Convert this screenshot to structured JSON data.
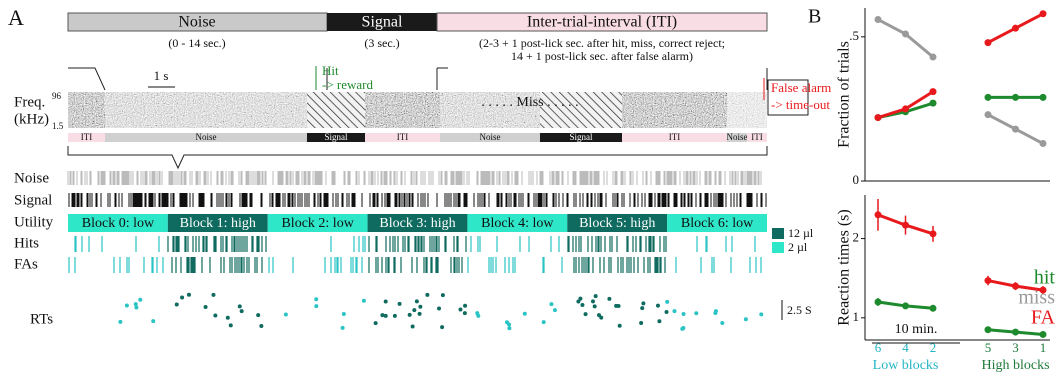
{
  "panel_a": {
    "label": "A",
    "header": [
      {
        "title": "Noise",
        "note": "(0 - 14 sec.)"
      },
      {
        "title": "Signal",
        "note": "(3 sec.)"
      },
      {
        "title": "Inter-trial-interval (ITI)",
        "note_lines": [
          "(2-3 + 1 post-lick sec. after hit, miss, correct reject;",
          "14 + 1 post-lick sec. after false alarm)"
        ]
      }
    ],
    "spectrogram": {
      "y_label_lines": [
        "Freq.",
        "(kHz)"
      ],
      "y_top": "96",
      "y_bottom": "1.5",
      "scale": "1 s",
      "hit": [
        "Hit",
        "-> reward"
      ],
      "miss": ". . . . . Miss . . . . .",
      "false_alarm": [
        "False alarm",
        "-> time-out"
      ]
    },
    "trial_bar": [
      "ITI",
      "Noise",
      "Signal",
      "ITI",
      "Noise",
      "Signal",
      "ITI",
      "Noise",
      "ITI"
    ],
    "rows": [
      "Noise",
      "Signal",
      "Utility",
      "Hits",
      "FAs",
      "RTs"
    ],
    "blocks": [
      "Block 0: low",
      "Block 1: high",
      "Block 2: low",
      "Block 3: high",
      "Block 4: low",
      "Block 5: high",
      "Block 6: low"
    ],
    "legend": [
      "12 µl",
      "2 µl"
    ],
    "rt_scale": "2.5 S",
    "time_scale": "10 min."
  },
  "chart_data": [
    {
      "type": "line",
      "panel_label": "B",
      "y_label": "Fraction of trials",
      "categories": [
        "6",
        "4",
        "2",
        null,
        "5",
        "3",
        "1"
      ],
      "series": [
        {
          "name": "hit",
          "color": "#1e8a2e",
          "values": [
            0.22,
            0.24,
            0.27,
            null,
            0.29,
            0.29,
            0.29
          ]
        },
        {
          "name": "miss",
          "color": "#9a9a9a",
          "values": [
            0.56,
            0.51,
            0.43,
            null,
            0.23,
            0.18,
            0.13
          ]
        },
        {
          "name": "FA",
          "color": "#e8191c",
          "values": [
            0.22,
            0.25,
            0.31,
            null,
            0.48,
            0.53,
            0.58
          ]
        }
      ],
      "ylim": [
        0,
        0.6
      ],
      "yticks": [
        0,
        {
          "value": 0.5,
          "label": ".5"
        }
      ]
    },
    {
      "type": "line",
      "y_label": "Reaction times (s)",
      "categories": [
        "6",
        "4",
        "2",
        null,
        "5",
        "3",
        "1"
      ],
      "group_labels": [
        {
          "text": "Low blocks",
          "color": "#22b5c5"
        },
        {
          "text": "High blocks",
          "color": "#1e7a3a"
        }
      ],
      "series": [
        {
          "name": "hit",
          "color": "#1e8a2e",
          "values": [
            1.2,
            1.15,
            1.12,
            null,
            0.85,
            0.82,
            0.79
          ],
          "errors": [
            0.05,
            0.03,
            0.03,
            null,
            0.03,
            0.02,
            0.02
          ]
        },
        {
          "name": "FA",
          "color": "#e8191c",
          "values": [
            2.3,
            2.17,
            2.06,
            null,
            1.47,
            1.4,
            1.35
          ],
          "errors": [
            0.2,
            0.12,
            0.1,
            null,
            0.06,
            0.05,
            0.05
          ]
        }
      ],
      "ylim": [
        0.72,
        2.55
      ],
      "yticks": [
        1,
        2
      ]
    }
  ]
}
